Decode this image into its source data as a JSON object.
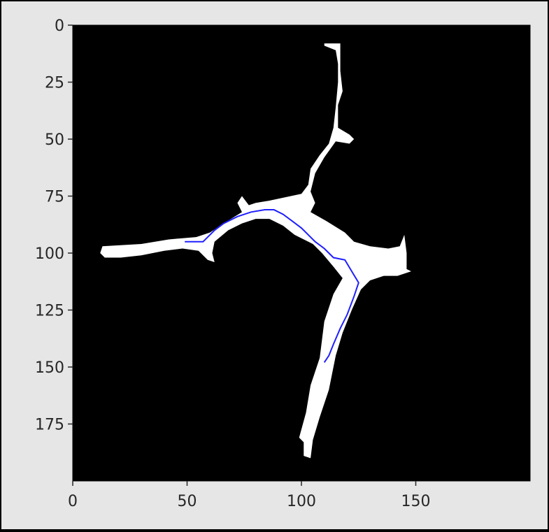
{
  "figure": {
    "background_color": "#e6e6e6",
    "axes_background_color": "#000000",
    "mask_color": "#ffffff",
    "path_color": "#1f1fff"
  },
  "axes": {
    "x_range": [
      0,
      200
    ],
    "y_range": [
      0,
      200
    ],
    "y_inverted": true,
    "grid": false
  },
  "ticks": {
    "x": [
      {
        "value": 0,
        "label": "0"
      },
      {
        "value": 50,
        "label": "50"
      },
      {
        "value": 100,
        "label": "100"
      },
      {
        "value": 150,
        "label": "150"
      }
    ],
    "y": [
      {
        "value": 0,
        "label": "0"
      },
      {
        "value": 25,
        "label": "25"
      },
      {
        "value": 50,
        "label": "50"
      },
      {
        "value": 75,
        "label": "75"
      },
      {
        "value": 100,
        "label": "100"
      },
      {
        "value": 125,
        "label": "125"
      },
      {
        "value": 150,
        "label": "150"
      },
      {
        "value": 175,
        "label": "175"
      }
    ]
  },
  "mask_shape": [
    [
      13,
      97
    ],
    [
      30,
      96
    ],
    [
      42,
      94
    ],
    [
      54,
      93
    ],
    [
      60,
      91
    ],
    [
      66,
      87
    ],
    [
      74,
      82
    ],
    [
      72,
      78
    ],
    [
      74,
      75
    ],
    [
      77,
      79
    ],
    [
      80,
      78
    ],
    [
      86,
      77
    ],
    [
      100,
      74
    ],
    [
      103,
      70
    ],
    [
      104,
      63
    ],
    [
      108,
      57
    ],
    [
      112,
      52
    ],
    [
      114,
      45
    ],
    [
      115,
      36
    ],
    [
      116,
      25
    ],
    [
      116,
      17
    ],
    [
      115,
      11
    ],
    [
      110,
      9
    ],
    [
      110,
      8
    ],
    [
      117,
      8
    ],
    [
      117,
      13
    ],
    [
      117,
      20
    ],
    [
      118,
      29
    ],
    [
      116,
      35
    ],
    [
      116,
      41
    ],
    [
      116,
      45
    ],
    [
      121,
      48
    ],
    [
      123,
      50
    ],
    [
      121,
      52
    ],
    [
      115,
      51
    ],
    [
      110,
      58
    ],
    [
      106,
      65
    ],
    [
      104,
      73
    ],
    [
      106,
      78
    ],
    [
      104,
      82
    ],
    [
      111,
      86
    ],
    [
      119,
      91
    ],
    [
      123,
      95
    ],
    [
      130,
      97
    ],
    [
      138,
      98
    ],
    [
      143,
      97
    ],
    [
      145,
      92
    ],
    [
      146,
      100
    ],
    [
      146,
      107
    ],
    [
      148,
      108
    ],
    [
      142,
      110
    ],
    [
      136,
      110
    ],
    [
      130,
      112
    ],
    [
      126,
      116
    ],
    [
      122,
      125
    ],
    [
      118,
      135
    ],
    [
      115,
      145
    ],
    [
      112,
      160
    ],
    [
      108,
      172
    ],
    [
      105,
      182
    ],
    [
      104,
      190
    ],
    [
      101,
      189
    ],
    [
      101,
      183
    ],
    [
      99,
      181
    ],
    [
      102,
      170
    ],
    [
      104,
      158
    ],
    [
      108,
      146
    ],
    [
      110,
      130
    ],
    [
      114,
      118
    ],
    [
      118,
      111
    ],
    [
      114,
      106
    ],
    [
      109,
      100
    ],
    [
      105,
      96
    ],
    [
      97,
      92
    ],
    [
      92,
      88
    ],
    [
      86,
      85
    ],
    [
      80,
      85
    ],
    [
      74,
      87
    ],
    [
      68,
      90
    ],
    [
      62,
      95
    ],
    [
      61,
      100
    ],
    [
      62,
      104
    ],
    [
      59,
      103
    ],
    [
      57,
      101
    ],
    [
      55,
      99
    ],
    [
      48,
      98
    ],
    [
      40,
      99
    ],
    [
      30,
      101
    ],
    [
      21,
      102
    ],
    [
      14,
      102
    ],
    [
      12,
      100
    ]
  ],
  "path_points": [
    [
      49,
      95
    ],
    [
      57,
      95
    ],
    [
      59,
      93
    ],
    [
      62,
      90
    ],
    [
      66,
      87
    ],
    [
      72,
      84
    ],
    [
      78,
      82
    ],
    [
      84,
      81
    ],
    [
      88,
      81
    ],
    [
      92,
      83
    ],
    [
      96,
      86
    ],
    [
      100,
      89
    ],
    [
      103,
      92
    ],
    [
      106,
      95
    ],
    [
      110,
      98
    ],
    [
      114,
      102
    ],
    [
      119,
      103
    ],
    [
      122,
      108
    ],
    [
      125,
      113
    ],
    [
      123,
      119
    ],
    [
      120,
      127
    ],
    [
      117,
      133
    ],
    [
      114,
      140
    ],
    [
      112,
      145
    ],
    [
      110,
      148
    ]
  ]
}
